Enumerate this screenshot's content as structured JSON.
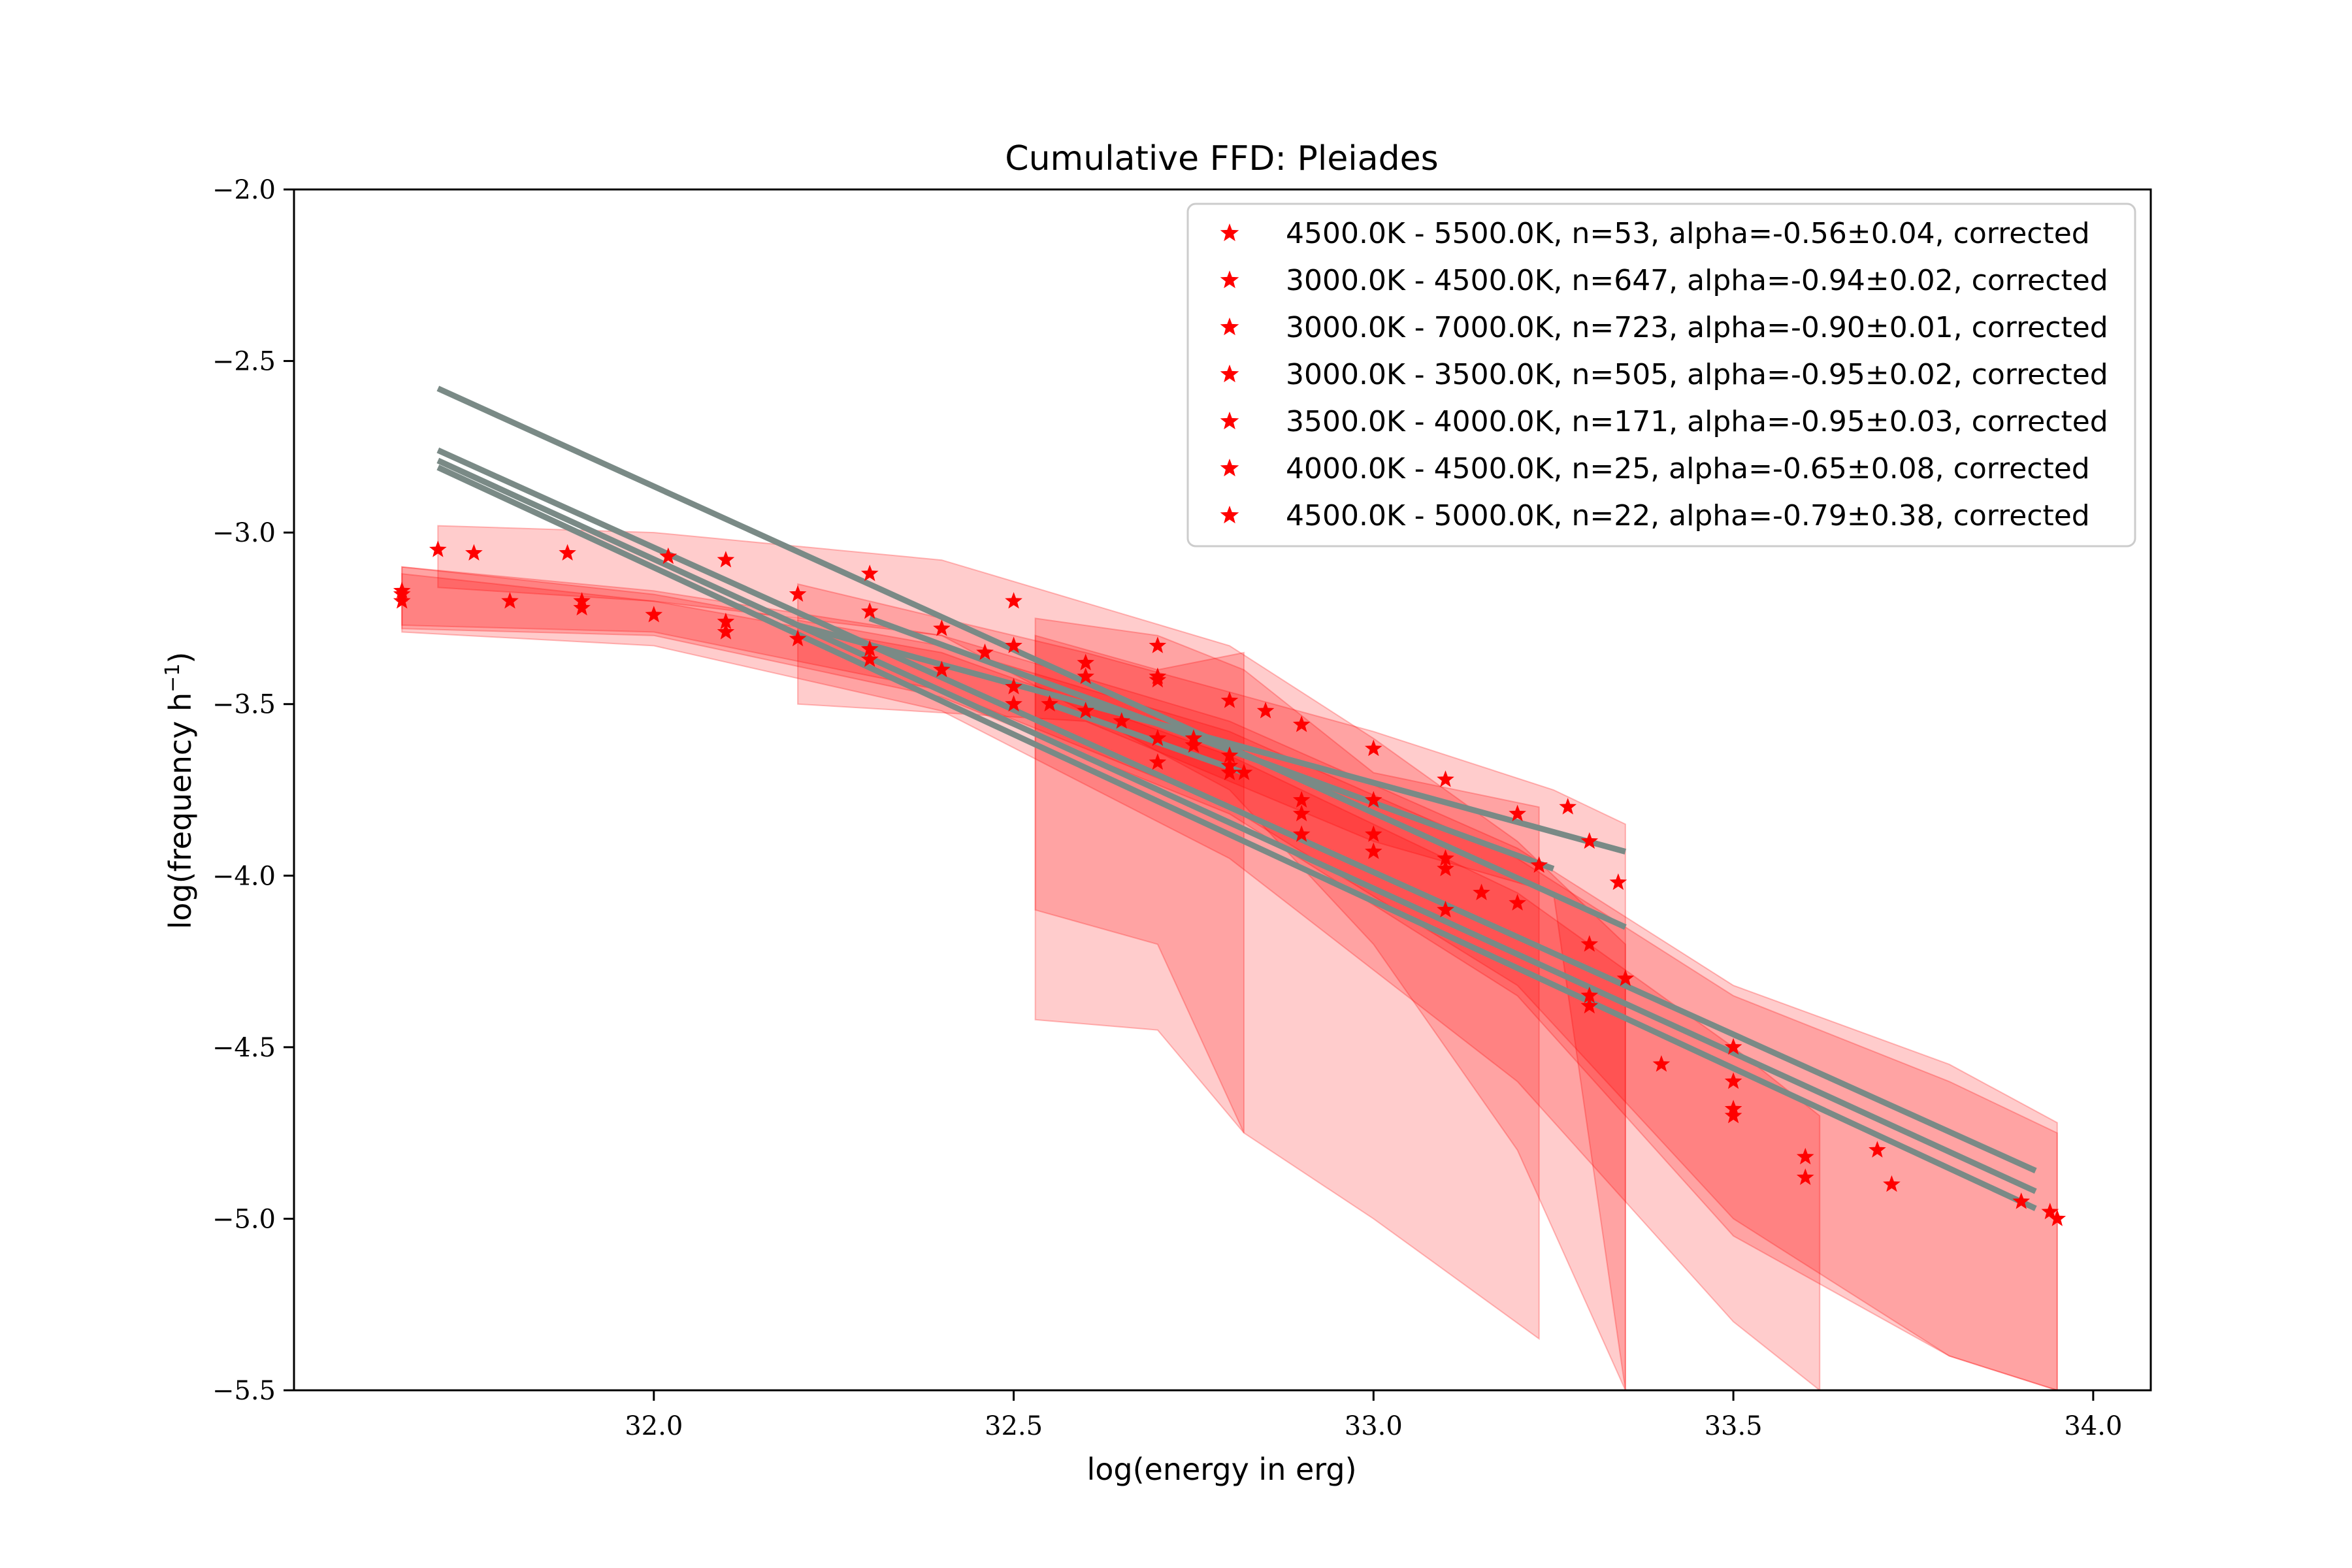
{
  "chart_data": {
    "type": "scatter",
    "title": "Cumulative FFD: Pleiades",
    "xlabel": "log(energy in erg)",
    "ylabel_main": "log(frequency h",
    "ylabel_sup": "−1",
    "ylabel_close": ")",
    "xlim": [
      31.5,
      34.08
    ],
    "ylim": [
      -5.5,
      -2.0
    ],
    "x_ticks": [
      32.0,
      32.5,
      33.0,
      33.5,
      34.0
    ],
    "x_tick_labels": [
      "32.0",
      "32.5",
      "33.0",
      "33.5",
      "34.0"
    ],
    "y_ticks": [
      -2.0,
      -2.5,
      -3.0,
      -3.5,
      -4.0,
      -4.5,
      -5.0,
      -5.5
    ],
    "y_tick_labels": [
      "−2.0",
      "−2.5",
      "−3.0",
      "−3.5",
      "−4.0",
      "−4.5",
      "−5.0",
      "−5.5"
    ],
    "legend_position": "top-right",
    "marker_color": "#ff0000",
    "band_color": "#ff0000",
    "fit_line_color": "#7a8a86",
    "series": [
      {
        "name": "4500.0K - 5500.0K, n=53, alpha=-0.56±0.04, corrected",
        "points": [
          [
            32.2,
            -3.18
          ],
          [
            32.3,
            -3.23
          ],
          [
            32.4,
            -3.28
          ],
          [
            32.5,
            -3.33
          ],
          [
            32.6,
            -3.38
          ],
          [
            32.7,
            -3.43
          ],
          [
            32.8,
            -3.49
          ],
          [
            32.9,
            -3.56
          ],
          [
            33.0,
            -3.63
          ],
          [
            33.1,
            -3.72
          ],
          [
            33.2,
            -3.82
          ],
          [
            33.27,
            -3.8
          ],
          [
            33.3,
            -3.9
          ],
          [
            33.34,
            -4.02
          ]
        ],
        "fit": [
          [
            32.2,
            -3.27
          ],
          [
            33.35,
            -3.93
          ]
        ],
        "band": [
          [
            32.2,
            -3.15,
            -3.5
          ],
          [
            32.6,
            -3.35,
            -3.55
          ],
          [
            33.0,
            -3.58,
            -3.9
          ],
          [
            33.25,
            -3.75,
            -4.05
          ],
          [
            33.35,
            -3.85,
            -5.5
          ]
        ]
      },
      {
        "name": "3000.0K - 4500.0K, n=647, alpha=-0.94±0.02, corrected",
        "points": [
          [
            31.65,
            -3.18
          ],
          [
            31.8,
            -3.2
          ],
          [
            32.0,
            -3.24
          ],
          [
            32.2,
            -3.31
          ],
          [
            32.4,
            -3.4
          ],
          [
            32.6,
            -3.52
          ],
          [
            32.8,
            -3.68
          ],
          [
            33.0,
            -3.88
          ],
          [
            33.2,
            -4.08
          ],
          [
            33.35,
            -4.3
          ],
          [
            33.5,
            -4.6
          ],
          [
            33.6,
            -4.82
          ],
          [
            33.72,
            -4.9
          ],
          [
            33.9,
            -4.95
          ],
          [
            33.95,
            -5.0
          ]
        ],
        "fit": [
          [
            31.7,
            -2.76
          ],
          [
            33.92,
            -4.86
          ]
        ],
        "band": [
          [
            31.65,
            -3.1,
            -3.28
          ],
          [
            32.0,
            -3.18,
            -3.3
          ],
          [
            32.4,
            -3.33,
            -3.48
          ],
          [
            32.8,
            -3.58,
            -3.82
          ],
          [
            33.2,
            -3.95,
            -4.35
          ],
          [
            33.5,
            -4.35,
            -5.05
          ],
          [
            33.8,
            -4.6,
            -5.4
          ],
          [
            33.95,
            -4.75,
            -5.5
          ]
        ]
      },
      {
        "name": "3000.0K - 7000.0K, n=723, alpha=-0.90±0.01, corrected",
        "points": [
          [
            31.65,
            -3.17
          ],
          [
            31.9,
            -3.2
          ],
          [
            32.1,
            -3.26
          ],
          [
            32.3,
            -3.34
          ],
          [
            32.5,
            -3.45
          ],
          [
            32.7,
            -3.6
          ],
          [
            32.9,
            -3.78
          ],
          [
            33.1,
            -3.98
          ],
          [
            33.3,
            -4.2
          ],
          [
            33.5,
            -4.5
          ],
          [
            33.7,
            -4.8
          ],
          [
            33.94,
            -4.98
          ]
        ],
        "fit": [
          [
            31.7,
            -2.79
          ],
          [
            33.92,
            -4.92
          ]
        ],
        "band": [
          [
            31.65,
            -3.1,
            -3.27
          ],
          [
            32.0,
            -3.17,
            -3.29
          ],
          [
            32.4,
            -3.3,
            -3.46
          ],
          [
            32.8,
            -3.55,
            -3.8
          ],
          [
            33.2,
            -3.92,
            -4.32
          ],
          [
            33.5,
            -4.32,
            -5.0
          ],
          [
            33.8,
            -4.55,
            -5.4
          ],
          [
            33.95,
            -4.72,
            -5.5
          ]
        ]
      },
      {
        "name": "3000.0K - 3500.0K, n=505, alpha=-0.95±0.02, corrected",
        "points": [
          [
            31.65,
            -3.2
          ],
          [
            31.9,
            -3.22
          ],
          [
            32.1,
            -3.29
          ],
          [
            32.3,
            -3.37
          ],
          [
            32.5,
            -3.5
          ],
          [
            32.7,
            -3.67
          ],
          [
            32.9,
            -3.88
          ],
          [
            33.1,
            -4.1
          ],
          [
            33.3,
            -4.38
          ],
          [
            33.5,
            -4.68
          ],
          [
            33.6,
            -4.88
          ]
        ],
        "fit": [
          [
            31.7,
            -2.81
          ],
          [
            33.92,
            -4.97
          ]
        ],
        "band": [
          [
            31.65,
            -3.12,
            -3.29
          ],
          [
            32.0,
            -3.2,
            -3.33
          ],
          [
            32.4,
            -3.35,
            -3.52
          ],
          [
            32.8,
            -3.65,
            -3.95
          ],
          [
            33.2,
            -4.05,
            -4.6
          ],
          [
            33.5,
            -4.5,
            -5.3
          ],
          [
            33.62,
            -4.7,
            -5.5
          ]
        ]
      },
      {
        "name": "3500.0K - 4000.0K, n=171, alpha=-0.95±0.03, corrected",
        "points": [
          [
            31.7,
            -3.05
          ],
          [
            31.75,
            -3.06
          ],
          [
            31.88,
            -3.06
          ],
          [
            32.02,
            -3.07
          ],
          [
            32.1,
            -3.08
          ],
          [
            32.3,
            -3.12
          ],
          [
            32.5,
            -3.2
          ],
          [
            32.7,
            -3.33
          ],
          [
            32.85,
            -3.52
          ],
          [
            33.0,
            -3.78
          ],
          [
            33.15,
            -4.05
          ],
          [
            33.3,
            -4.35
          ],
          [
            33.4,
            -4.55
          ],
          [
            33.5,
            -4.7
          ]
        ],
        "fit": [
          [
            31.7,
            -2.58
          ],
          [
            33.35,
            -4.15
          ]
        ],
        "band": [
          [
            31.7,
            -2.98,
            -3.16
          ],
          [
            32.0,
            -3.0,
            -3.2
          ],
          [
            32.4,
            -3.08,
            -3.3
          ],
          [
            32.8,
            -3.33,
            -3.75
          ],
          [
            33.0,
            -3.6,
            -4.2
          ],
          [
            33.2,
            -3.9,
            -4.8
          ],
          [
            33.35,
            -4.2,
            -5.5
          ]
        ]
      },
      {
        "name": "4000.0K - 4500.0K, n=25, alpha=-0.65±0.08, corrected",
        "points": [
          [
            32.46,
            -3.35
          ],
          [
            32.6,
            -3.42
          ],
          [
            32.7,
            -3.42
          ],
          [
            32.75,
            -3.6
          ],
          [
            32.8,
            -3.7
          ],
          [
            32.9,
            -3.82
          ],
          [
            33.0,
            -3.93
          ],
          [
            33.1,
            -3.95
          ],
          [
            33.23,
            -3.97
          ]
        ],
        "fit": [
          [
            32.3,
            -3.25
          ],
          [
            33.25,
            -3.98
          ]
        ],
        "band": [
          [
            32.53,
            -3.25,
            -4.42
          ],
          [
            32.7,
            -3.3,
            -4.45
          ],
          [
            32.82,
            -3.4,
            -4.75
          ],
          [
            33.0,
            -3.7,
            -5.0
          ],
          [
            33.23,
            -3.8,
            -5.35
          ]
        ]
      },
      {
        "name": "4500.0K - 5000.0K, n=22, alpha=-0.79±0.38, corrected",
        "points": [
          [
            32.55,
            -3.5
          ],
          [
            32.6,
            -3.52
          ],
          [
            32.65,
            -3.55
          ],
          [
            32.7,
            -3.6
          ],
          [
            32.75,
            -3.62
          ],
          [
            32.8,
            -3.65
          ],
          [
            32.82,
            -3.7
          ]
        ],
        "fit": [
          [
            32.55,
            -3.5
          ],
          [
            32.82,
            -3.7
          ]
        ],
        "band": [
          [
            32.53,
            -3.3,
            -4.1
          ],
          [
            32.7,
            -3.4,
            -4.2
          ],
          [
            32.82,
            -3.35,
            -4.75
          ]
        ]
      }
    ]
  }
}
